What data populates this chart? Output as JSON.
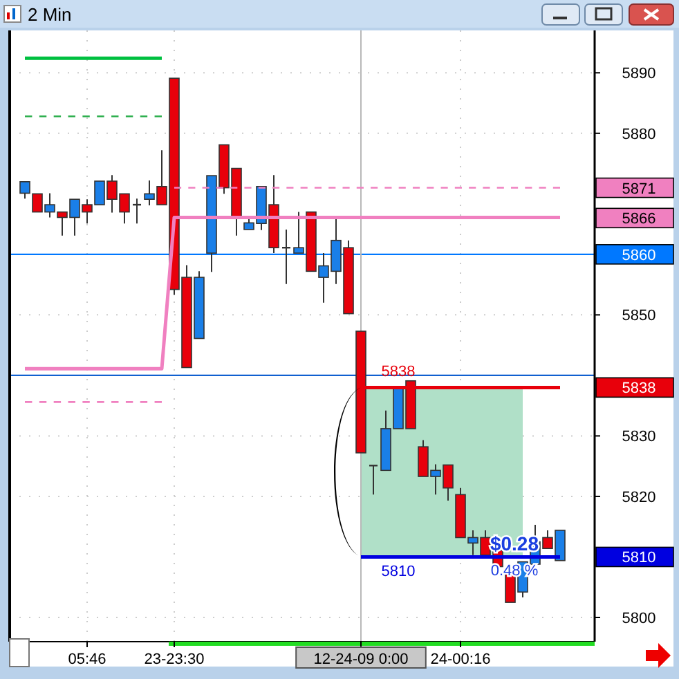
{
  "chart_data": {
    "type": "candlestick",
    "title": "2 Min",
    "categories": [
      null,
      null,
      null,
      null,
      null,
      "05:46",
      null,
      null,
      null,
      null,
      null,
      null,
      "23-23:30",
      null,
      null,
      null,
      null,
      null,
      null,
      null,
      null,
      null,
      null,
      null,
      null,
      null,
      null,
      "12-24-09 0:00",
      null,
      null,
      null,
      null,
      null,
      null,
      null,
      "24-00:16",
      null,
      null,
      null,
      null,
      null,
      null,
      null,
      null
    ],
    "ohlc": [
      [
        5870.1,
        5872.0,
        5869.2,
        5872.0
      ],
      [
        5870.0,
        5870.0,
        5867.0,
        5867.0
      ],
      [
        5867.0,
        5870.1,
        5866.1,
        5868.2
      ],
      [
        5867.0,
        5867.0,
        5863.1,
        5866.1
      ],
      [
        5866.1,
        5869.1,
        5863.1,
        5869.1
      ],
      [
        5868.2,
        5869.1,
        5865.1,
        5867.0
      ],
      [
        5868.2,
        5872.1,
        5868.2,
        5872.1
      ],
      [
        5872.1,
        5873.1,
        5866.9,
        5869.1
      ],
      [
        5870.0,
        5870.0,
        5865.1,
        5867.0
      ],
      [
        5868.2,
        5869.2,
        5865.1,
        5868.2
      ],
      [
        5869.1,
        5872.2,
        5868.1,
        5870.0
      ],
      [
        5871.2,
        5877.2,
        5868.2,
        5868.2
      ],
      [
        5889.1,
        5889.1,
        5853.3,
        5854.2
      ],
      [
        5856.2,
        5858.2,
        5841.3,
        5841.3
      ],
      [
        5846.1,
        5857.2,
        5846.1,
        5856.2
      ],
      [
        5860.2,
        5873.0,
        5857.1,
        5873.0
      ],
      [
        5878.1,
        5878.1,
        5870.0,
        5871.0
      ],
      [
        5874.2,
        5874.2,
        5863.1,
        5866.1
      ],
      [
        5864.1,
        5866.3,
        5864.1,
        5865.2
      ],
      [
        5865.1,
        5871.2,
        5864.0,
        5871.2
      ],
      [
        5868.2,
        5873.1,
        5860.2,
        5861.1
      ],
      [
        5861.1,
        5864.1,
        5855.1,
        5861.1
      ],
      [
        5860.2,
        5867.0,
        5860.2,
        5861.1
      ],
      [
        5867.0,
        5867.0,
        5857.2,
        5857.2
      ],
      [
        5856.2,
        5860.2,
        5852.0,
        5858.1
      ],
      [
        5857.2,
        5866.3,
        5855.1,
        5862.3
      ],
      [
        5861.1,
        5862.3,
        5850.2,
        5850.2
      ],
      [
        5847.3,
        5847.3,
        5827.2,
        5827.2
      ],
      [
        5825.1,
        5825.1,
        5820.3,
        5825.1
      ],
      [
        5824.3,
        5834.2,
        5824.3,
        5831.2
      ],
      [
        5831.2,
        5837.9,
        5831.2,
        5837.9
      ],
      [
        5839.1,
        5839.1,
        5831.2,
        5831.2
      ],
      [
        5828.2,
        5829.3,
        5823.3,
        5823.3
      ],
      [
        5823.3,
        5825.3,
        5820.3,
        5824.3
      ],
      [
        5825.2,
        5825.2,
        5819.3,
        5821.4
      ],
      [
        5820.3,
        5821.4,
        5813.2,
        5813.2
      ],
      [
        5812.3,
        5814.4,
        5810.3,
        5813.2
      ],
      [
        5813.2,
        5814.4,
        5810.3,
        5810.3
      ],
      [
        5811.1,
        5811.1,
        5808.4,
        5808.4
      ],
      [
        5807.3,
        5807.3,
        5802.5,
        5802.5
      ],
      [
        5804.2,
        5809.2,
        5803.3,
        5809.2
      ],
      [
        5808.8,
        5815.3,
        5808.8,
        5812.5
      ],
      [
        5813.2,
        5814.4,
        5811.4,
        5811.4
      ],
      [
        5809.4,
        5814.4,
        5809.4,
        5814.4
      ]
    ],
    "colors": [
      "#1a7fe8",
      "#e8000b",
      "#1a7fe8",
      "#e8000b",
      "#1a7fe8",
      "#e8000b",
      "#1a7fe8",
      "#e8000b",
      "#e8000b",
      "#333333",
      "#1a7fe8",
      "#e8000b",
      "#e8000b",
      "#e8000b",
      "#1a7fe8",
      "#1a7fe8",
      "#e8000b",
      "#e8000b",
      "#1a7fe8",
      "#1a7fe8",
      "#e8000b",
      "#333333",
      "#1a7fe8",
      "#e8000b",
      "#1a7fe8",
      "#1a7fe8",
      "#e8000b",
      "#e8000b",
      "#333333",
      "#1a7fe8",
      "#1a7fe8",
      "#e8000b",
      "#e8000b",
      "#1a7fe8",
      "#e8000b",
      "#e8000b",
      "#1a7fe8",
      "#e8000b",
      "#e8000b",
      "#e8000b",
      "#1a7fe8",
      "#1a7fe8",
      "#e8000b",
      "#1a7fe8"
    ],
    "series": [
      {
        "type": "line",
        "color": "#f080c0",
        "line_style": "solid",
        "values": [
          5841.1,
          5841.1,
          5841.1,
          5841.1,
          5841.1,
          5841.1,
          5841.1,
          5841.1,
          5841.1,
          5841.1,
          5841.1,
          5841.1,
          5866.1,
          5866.1,
          5866.1,
          5866.1,
          5866.1,
          5866.1,
          5866.1,
          5866.1,
          5866.1,
          5866.1,
          5866.1,
          5866.1,
          5866.1,
          5866.1,
          5866.1,
          5866.1,
          5866.1,
          5866.1,
          5866.1,
          5866.1,
          5866.1,
          5866.1,
          5866.1,
          5866.1,
          5866.1,
          5866.1,
          5866.1,
          5866.1,
          5866.1,
          5866.1,
          5866.1,
          5866.1
        ],
        "value_labels": [
          null,
          null,
          null,
          null,
          null,
          null,
          null,
          null,
          null,
          null,
          null,
          null,
          null,
          null,
          null,
          null,
          null,
          null,
          null,
          null,
          null,
          null,
          null,
          null,
          null,
          null,
          null,
          null,
          null,
          null,
          null,
          null,
          null,
          null,
          null,
          null,
          null,
          null,
          null,
          null,
          null,
          null,
          null,
          null
        ]
      },
      {
        "type": "line",
        "color": "#f080c0",
        "line_style": "dashed",
        "values": [
          5835.6,
          5835.6,
          5835.6,
          5835.6,
          5835.6,
          5835.6,
          5835.6,
          5835.6,
          5835.6,
          5835.6,
          5835.6,
          5835.6,
          null,
          null,
          null,
          null,
          null,
          null,
          null,
          null,
          null,
          null,
          null,
          null,
          null,
          null,
          null,
          null,
          null,
          null,
          null,
          null,
          null,
          null,
          null,
          null,
          null,
          null,
          null,
          null,
          null,
          null,
          null,
          null
        ]
      },
      {
        "type": "line",
        "color": "#f080c0",
        "line_style": "dashed",
        "values": [
          null,
          null,
          null,
          null,
          null,
          null,
          null,
          null,
          null,
          null,
          null,
          null,
          5871.0,
          5871.0,
          5871.0,
          5871.0,
          5871.0,
          5871.0,
          5871.0,
          5871.0,
          5871.0,
          5871.0,
          5871.0,
          5871.0,
          5871.0,
          5871.0,
          5871.0,
          5871.0,
          5871.0,
          5871.0,
          5871.0,
          5871.0,
          5871.0,
          5871.0,
          5871.0,
          5871.0,
          5871.0,
          5871.0,
          5871.0,
          5871.0,
          5871.0,
          5871.0,
          5871.0,
          5871.0
        ]
      },
      {
        "type": "line",
        "color": "#00c040",
        "line_style": "solid",
        "values": [
          5892.4,
          5892.4,
          5892.4,
          5892.4,
          5892.4,
          5892.4,
          5892.4,
          5892.4,
          5892.4,
          5892.4,
          5892.4,
          5892.4,
          null,
          null,
          null,
          null,
          null,
          null,
          null,
          null,
          null,
          null,
          null,
          null,
          null,
          null,
          null,
          null,
          null,
          null,
          null,
          null,
          null,
          null,
          null,
          null,
          null,
          null,
          null,
          null,
          null,
          null,
          null,
          null
        ]
      },
      {
        "type": "line",
        "color": "#30b050",
        "line_style": "dashed",
        "values": [
          5882.8,
          5882.8,
          5882.8,
          5882.8,
          5882.8,
          5882.8,
          5882.8,
          5882.8,
          5882.8,
          5882.8,
          5882.8,
          5882.8,
          null,
          null,
          null,
          null,
          null,
          null,
          null,
          null,
          null,
          null,
          null,
          null,
          null,
          null,
          null,
          null,
          null,
          null,
          null,
          null,
          null,
          null,
          null,
          null,
          null,
          null,
          null,
          null,
          null,
          null,
          null,
          null
        ]
      },
      {
        "type": "line",
        "color": "#e8000b",
        "line_style": "solid",
        "values": [
          null,
          null,
          null,
          null,
          null,
          null,
          null,
          null,
          null,
          null,
          null,
          null,
          null,
          null,
          null,
          null,
          null,
          null,
          null,
          null,
          null,
          null,
          null,
          null,
          null,
          null,
          null,
          5838,
          5838,
          5838,
          5838,
          5838,
          5838,
          5838,
          5838,
          5838,
          5838,
          5838,
          5838,
          5838,
          5838,
          5838,
          5838,
          5838
        ]
      },
      {
        "type": "line",
        "color": "#0000e0",
        "line_style": "solid",
        "values": [
          null,
          null,
          null,
          null,
          null,
          null,
          null,
          null,
          null,
          null,
          null,
          null,
          null,
          null,
          null,
          null,
          null,
          null,
          null,
          null,
          null,
          null,
          null,
          null,
          null,
          null,
          null,
          5810,
          5810,
          5810,
          5810,
          5810,
          5810,
          5810,
          5810,
          5810,
          5810,
          5810,
          5810,
          5810,
          5810,
          5810,
          5810,
          5810
        ]
      }
    ],
    "ref_lines": [
      {
        "axis": "y",
        "value": 5860,
        "label": "5860",
        "color": "#0078ff"
      },
      {
        "axis": "y",
        "value": 5840,
        "color": "#1060d0"
      },
      {
        "axis": "x",
        "value": "12-24-09 0:00",
        "color": "#b8b8b8"
      }
    ],
    "bands": [
      {
        "axis": "y",
        "from": 5810,
        "to": 5838,
        "color": "#b0e0c8"
      }
    ],
    "annotations": [
      "$0.28",
      "0.48 %",
      "5871",
      "5866",
      "5838",
      "5810",
      "5838",
      "5810"
    ],
    "ylim": [
      5796,
      5897
    ],
    "yticks": [
      5800,
      5820,
      5830,
      5850,
      5880,
      5890
    ],
    "grid": true
  }
}
